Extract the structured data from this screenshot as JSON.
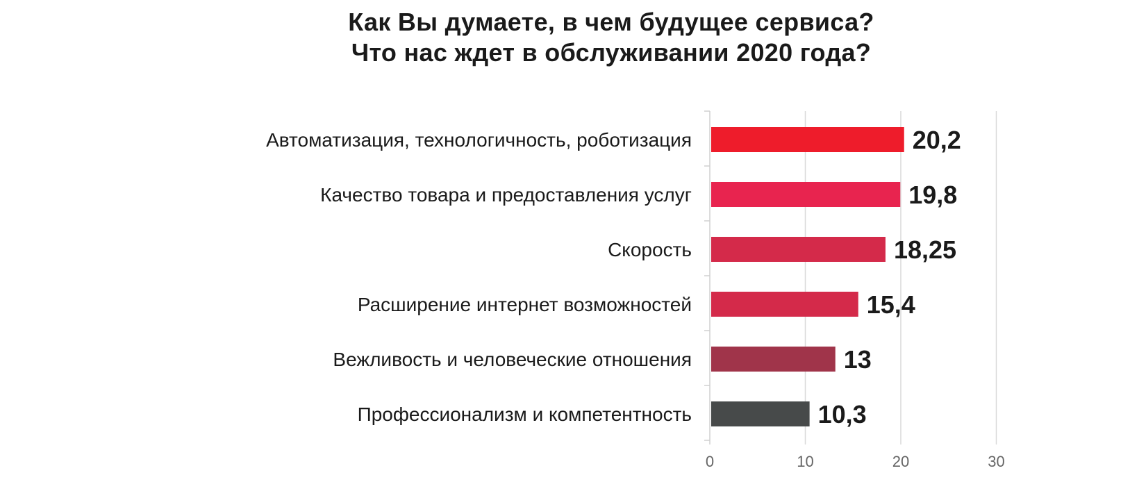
{
  "title_lines": [
    "Как Вы думаете, в чем будущее сервиса?",
    "Что нас ждет в обслуживании 2020 года?"
  ],
  "chart_data": {
    "type": "bar",
    "orientation": "horizontal",
    "title": "Как Вы думаете, в чем будущее сервиса? Что нас ждет в обслуживании 2020 года?",
    "categories": [
      "Автоматизация, технологичность, роботизация",
      "Качество товара и предоставления услуг",
      "Скорость",
      "Расширение интернет возможностей",
      "Вежливость и человеческие отношения",
      "Профессионализм и компетентность"
    ],
    "values": [
      20.2,
      19.8,
      18.25,
      15.4,
      13,
      10.3
    ],
    "value_labels": [
      "20,2",
      "19,8",
      "18,25",
      "15,4",
      "13",
      "10,3"
    ],
    "bar_colors": [
      "#ee1c2b",
      "#e8244f",
      "#d42a4a",
      "#d42a4a",
      "#a0344a",
      "#474a4a"
    ],
    "xlim": [
      0,
      30
    ],
    "xticks": [
      0,
      10,
      20,
      30
    ],
    "xlabel": "",
    "ylabel": "",
    "grid": true
  }
}
